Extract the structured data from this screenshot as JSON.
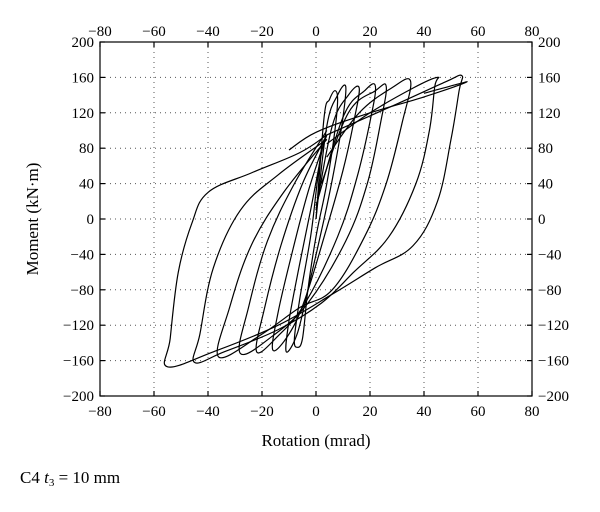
{
  "chart_data": {
    "type": "line",
    "title": "",
    "xlabel": "Rotation (mrad)",
    "ylabel": "Moment (kN·m)",
    "xlim": [
      -80,
      80
    ],
    "ylim": [
      -200,
      200
    ],
    "xticks": [
      -80,
      -60,
      -40,
      -20,
      0,
      20,
      40,
      60,
      80
    ],
    "yticks": [
      -200,
      -160,
      -120,
      -80,
      -40,
      0,
      40,
      80,
      120,
      160,
      200
    ],
    "xtick_labels": [
      "−80",
      "−60",
      "−40",
      "−20",
      "0",
      "20",
      "40",
      "60",
      "80"
    ],
    "ytick_labels": [
      "−200",
      "−160",
      "−120",
      "−80",
      "−40",
      "0",
      "40",
      "80",
      "120",
      "160",
      "200"
    ],
    "grid": true,
    "mirror_axes": true,
    "series": [
      {
        "values": [
          [
            0,
            0
          ],
          [
            3,
            115
          ],
          [
            5,
            135
          ],
          [
            7,
            145
          ],
          [
            8,
            135
          ],
          [
            7,
            100
          ],
          [
            4,
            40
          ],
          [
            0,
            -20
          ],
          [
            -3,
            -80
          ],
          [
            -5,
            -135
          ],
          [
            -7,
            -145
          ],
          [
            -8,
            -135
          ],
          [
            -6,
            -90
          ],
          [
            -2,
            -20
          ],
          [
            0,
            30
          ],
          [
            2,
            80
          ]
        ]
      },
      {
        "values": [
          [
            0,
            0
          ],
          [
            4,
            105
          ],
          [
            8,
            140
          ],
          [
            11,
            150
          ],
          [
            10,
            115
          ],
          [
            7,
            60
          ],
          [
            3,
            0
          ],
          [
            -3,
            -80
          ],
          [
            -7,
            -130
          ],
          [
            -11,
            -150
          ],
          [
            -10,
            -115
          ],
          [
            -6,
            -50
          ],
          [
            -2,
            10
          ],
          [
            3,
            90
          ]
        ]
      },
      {
        "values": [
          [
            0,
            10
          ],
          [
            6,
            105
          ],
          [
            12,
            140
          ],
          [
            16,
            148
          ],
          [
            14,
            110
          ],
          [
            10,
            55
          ],
          [
            4,
            -10
          ],
          [
            -4,
            -90
          ],
          [
            -10,
            -130
          ],
          [
            -16,
            -148
          ],
          [
            -14,
            -105
          ],
          [
            -9,
            -40
          ],
          [
            -3,
            30
          ],
          [
            4,
            95
          ]
        ]
      },
      {
        "values": [
          [
            0,
            15
          ],
          [
            10,
            115
          ],
          [
            18,
            145
          ],
          [
            22,
            150
          ],
          [
            20,
            110
          ],
          [
            15,
            45
          ],
          [
            8,
            -20
          ],
          [
            -4,
            -95
          ],
          [
            -14,
            -132
          ],
          [
            -22,
            -150
          ],
          [
            -19,
            -100
          ],
          [
            -13,
            -30
          ],
          [
            -5,
            40
          ],
          [
            4,
            95
          ]
        ]
      },
      {
        "values": [
          [
            2,
            40
          ],
          [
            12,
            120
          ],
          [
            22,
            145
          ],
          [
            26,
            150
          ],
          [
            24,
            110
          ],
          [
            19,
            40
          ],
          [
            11,
            -25
          ],
          [
            -3,
            -95
          ],
          [
            -16,
            -132
          ],
          [
            -28,
            -152
          ],
          [
            -25,
            -100
          ],
          [
            -18,
            -25
          ],
          [
            -8,
            40
          ],
          [
            4,
            100
          ]
        ]
      },
      {
        "values": [
          [
            4,
            70
          ],
          [
            16,
            120
          ],
          [
            28,
            148
          ],
          [
            35,
            156
          ],
          [
            32,
            110
          ],
          [
            26,
            40
          ],
          [
            18,
            -20
          ],
          [
            6,
            -80
          ],
          [
            -6,
            -100
          ],
          [
            -20,
            -130
          ],
          [
            -36,
            -156
          ],
          [
            -32,
            -100
          ],
          [
            -24,
            -30
          ],
          [
            -12,
            30
          ],
          [
            4,
            90
          ]
        ]
      },
      {
        "values": [
          [
            4,
            85
          ],
          [
            20,
            120
          ],
          [
            36,
            148
          ],
          [
            45,
            160
          ],
          [
            44,
            150
          ],
          [
            42,
            100
          ],
          [
            37,
            40
          ],
          [
            27,
            -20
          ],
          [
            14,
            -60
          ],
          [
            2,
            -95
          ],
          [
            -14,
            -125
          ],
          [
            -34,
            -150
          ],
          [
            -45,
            -162
          ],
          [
            -43,
            -130
          ],
          [
            -38,
            -55
          ],
          [
            -28,
            10
          ],
          [
            -14,
            50
          ],
          [
            4,
            90
          ]
        ]
      },
      {
        "values": [
          [
            4,
            95
          ],
          [
            30,
            130
          ],
          [
            48,
            155
          ],
          [
            54,
            162
          ],
          [
            53,
            145
          ],
          [
            50,
            90
          ],
          [
            45,
            20
          ],
          [
            36,
            -30
          ],
          [
            22,
            -55
          ],
          [
            6,
            -85
          ],
          [
            -14,
            -120
          ],
          [
            -38,
            -150
          ],
          [
            -55,
            -167
          ],
          [
            -54,
            -135
          ],
          [
            -51,
            -60
          ],
          [
            -46,
            -5
          ],
          [
            -40,
            30
          ],
          [
            -24,
            52
          ],
          [
            -6,
            75
          ],
          [
            4,
            95
          ]
        ]
      },
      {
        "values": [
          [
            40,
            142
          ],
          [
            56,
            155
          ],
          [
            40,
            138
          ],
          [
            18,
            118
          ],
          [
            0,
            98
          ],
          [
            -10,
            78
          ]
        ]
      }
    ]
  },
  "caption": {
    "prefix": "C4 ",
    "var": "t",
    "sub": "3",
    "suffix": " = 10 mm"
  }
}
